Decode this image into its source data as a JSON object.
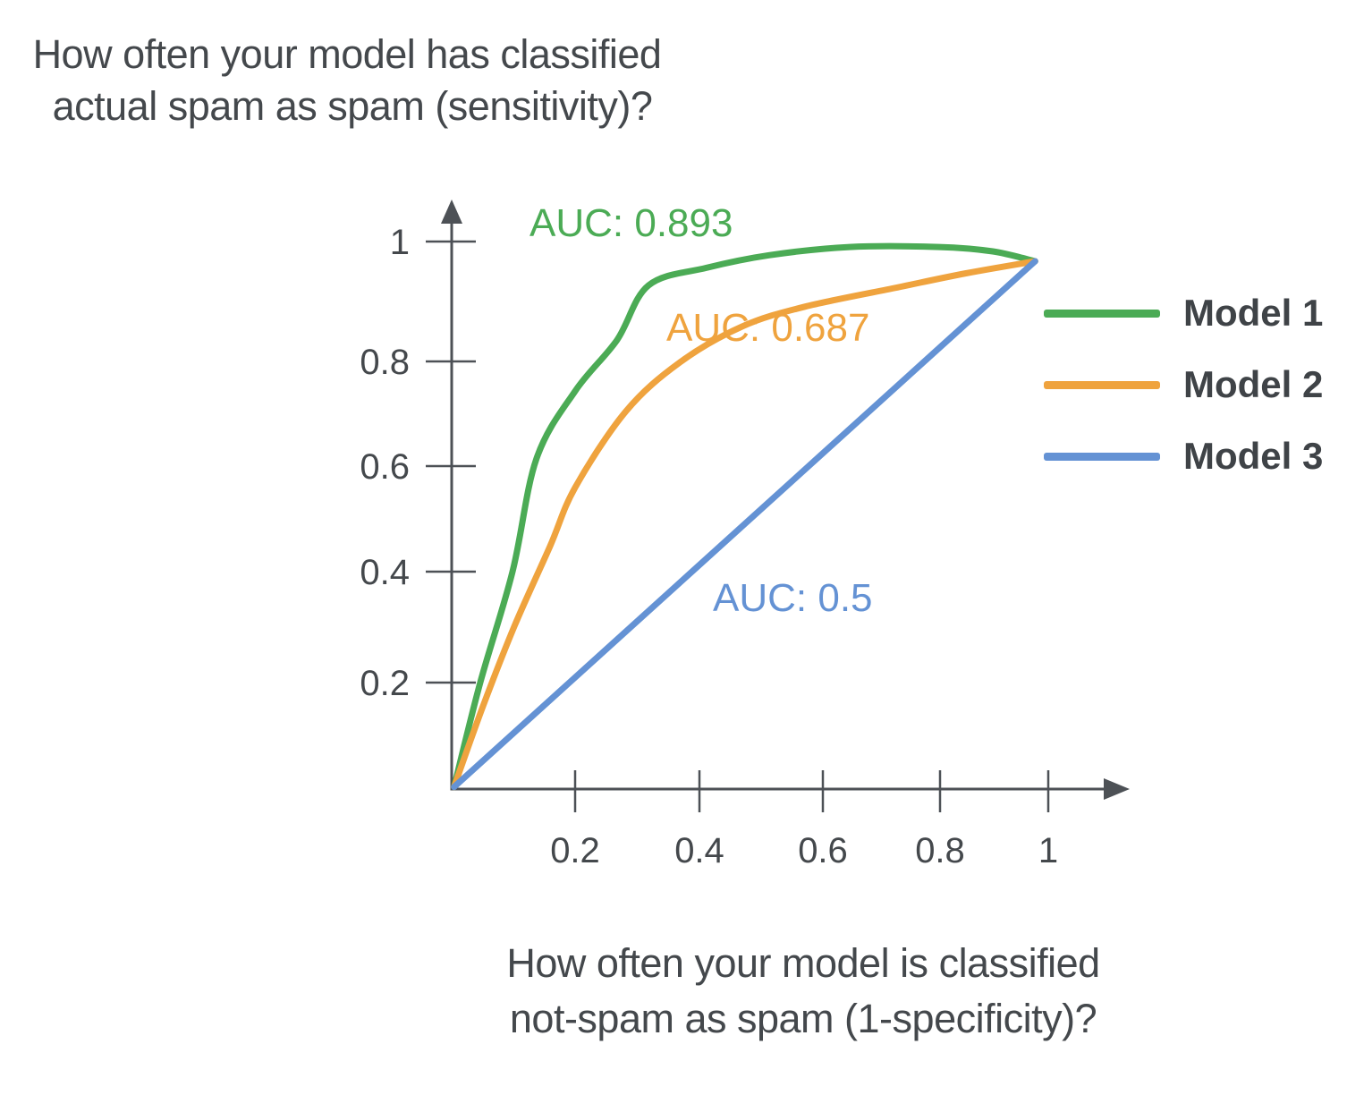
{
  "chart_data": {
    "type": "line",
    "ylabel": "How often your model has classified\n actual spam as spam (sensitivity)?",
    "xlabel": "How often your model is classified\nnot-spam as spam (1-specificity)?",
    "xlim": [
      0,
      1
    ],
    "ylim": [
      0,
      1
    ],
    "x_ticks": [
      "0.2",
      "0.4",
      "0.6",
      "0.8",
      "1"
    ],
    "y_ticks": [
      "1",
      "0.8",
      "0.6",
      "0.4",
      "0.2"
    ],
    "grid": false,
    "legend_position": "right",
    "axis_color": "#4d5156",
    "text_color": "#44484c",
    "series": [
      {
        "name": "Model 1",
        "auc": 0.893,
        "annotation": "AUC: 0.893",
        "color": "#4bab55",
        "points": [
          [
            0.004,
            0.004
          ],
          [
            0.048,
            0.195
          ],
          [
            0.102,
            0.397
          ],
          [
            0.142,
            0.603
          ],
          [
            0.207,
            0.727
          ],
          [
            0.277,
            0.82
          ],
          [
            0.33,
            0.92
          ],
          [
            0.427,
            0.952
          ],
          [
            0.532,
            0.975
          ],
          [
            0.667,
            0.99
          ],
          [
            0.817,
            0.99
          ],
          [
            0.907,
            0.982
          ],
          [
            0.978,
            0.964
          ]
        ]
      },
      {
        "name": "Model 2",
        "auc": 0.687,
        "annotation": "AUC: 0.687",
        "color": "#efa33e",
        "points": [
          [
            0.004,
            0.004
          ],
          [
            0.052,
            0.15
          ],
          [
            0.105,
            0.297
          ],
          [
            0.165,
            0.444
          ],
          [
            0.207,
            0.551
          ],
          [
            0.292,
            0.69
          ],
          [
            0.382,
            0.779
          ],
          [
            0.487,
            0.845
          ],
          [
            0.592,
            0.881
          ],
          [
            0.742,
            0.915
          ],
          [
            0.862,
            0.942
          ],
          [
            0.978,
            0.964
          ]
        ]
      },
      {
        "name": "Model 3",
        "auc": 0.5,
        "annotation": "AUC: 0.5",
        "color": "#6492d4",
        "points": [
          [
            0.004,
            0.004
          ],
          [
            0.978,
            0.964
          ]
        ]
      }
    ]
  }
}
